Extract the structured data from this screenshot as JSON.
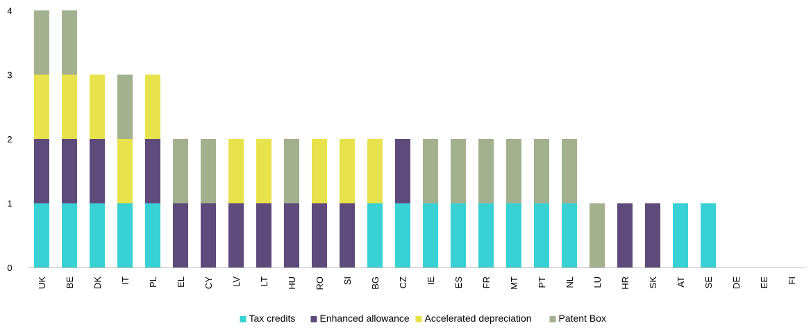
{
  "chart_data": {
    "type": "bar",
    "stacked": true,
    "categories": [
      "UK",
      "BE",
      "DK",
      "IT",
      "PL",
      "EL",
      "CY",
      "LV",
      "LT",
      "HU",
      "RO",
      "SI",
      "BG",
      "CZ",
      "IE",
      "ES",
      "FR",
      "MT",
      "PT",
      "NL",
      "LU",
      "HR",
      "SK",
      "AT",
      "SE",
      "DE",
      "EE",
      "FI"
    ],
    "series": [
      {
        "name": "Tax credits",
        "color": "#38d1d4",
        "values": [
          1,
          1,
          1,
          1,
          1,
          0,
          0,
          0,
          0,
          0,
          0,
          0,
          1,
          1,
          1,
          1,
          1,
          1,
          1,
          1,
          0,
          0,
          0,
          1,
          1,
          0,
          0,
          0
        ]
      },
      {
        "name": "Enhanced allowance",
        "color": "#5e4a7b",
        "values": [
          1,
          1,
          1,
          0,
          1,
          1,
          1,
          1,
          1,
          1,
          1,
          1,
          0,
          1,
          0,
          0,
          0,
          0,
          0,
          0,
          0,
          1,
          1,
          0,
          0,
          0,
          0,
          0
        ]
      },
      {
        "name": "Accelerated depreciation",
        "color": "#e8e34c",
        "values": [
          1,
          1,
          1,
          1,
          1,
          0,
          0,
          1,
          1,
          0,
          1,
          1,
          1,
          0,
          0,
          0,
          0,
          0,
          0,
          0,
          0,
          0,
          0,
          0,
          0,
          0,
          0,
          0
        ]
      },
      {
        "name": "Patent Box",
        "color": "#a3b18f",
        "values": [
          1,
          1,
          0,
          1,
          0,
          1,
          1,
          0,
          0,
          1,
          0,
          0,
          0,
          0,
          1,
          1,
          1,
          1,
          1,
          1,
          1,
          0,
          0,
          0,
          0,
          0,
          0,
          0
        ]
      }
    ],
    "yticks": [
      "0",
      "1",
      "2",
      "3",
      "4"
    ],
    "ylim": [
      0,
      4
    ],
    "grid": false,
    "legend": "bottom"
  }
}
